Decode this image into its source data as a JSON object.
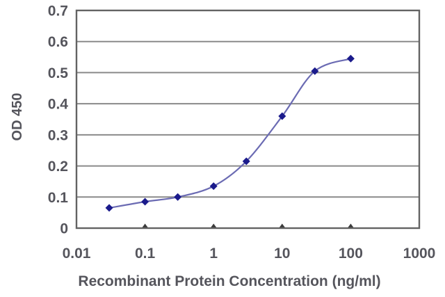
{
  "figure": {
    "background_color": "#ffffff"
  },
  "chart_data": {
    "type": "line",
    "title": "",
    "xlabel": "Recombinant Protein Concentration (ng/ml)",
    "ylabel": "OD 450",
    "x_scale": "log",
    "y_scale": "linear",
    "xlim": [
      0.01,
      1000
    ],
    "ylim": [
      0,
      0.7
    ],
    "x_tick_labels": [
      "0.01",
      "0.1",
      "1",
      "10",
      "100",
      "1000"
    ],
    "x_tick_values": [
      0.01,
      0.1,
      1,
      10,
      100,
      1000
    ],
    "y_tick_labels": [
      "0",
      "0.1",
      "0.2",
      "0.3",
      "0.4",
      "0.5",
      "0.6",
      "0.7"
    ],
    "y_tick_values": [
      0,
      0.1,
      0.2,
      0.3,
      0.4,
      0.5,
      0.6,
      0.7
    ],
    "grid": "horizontal",
    "legend": "none",
    "smooth": true,
    "marker": "diamond",
    "series": [
      {
        "name": "OD 450",
        "x": [
          0.03,
          0.1,
          0.3,
          1,
          3,
          10,
          30,
          100
        ],
        "y": [
          0.065,
          0.085,
          0.1,
          0.135,
          0.215,
          0.36,
          0.505,
          0.545
        ]
      }
    ],
    "colors": {
      "line": "#6b6bb3",
      "marker": "#1b1b8c",
      "gridline": "#8a8a8a",
      "plot_border": "#636363",
      "tick_mark": "#3d3d3d",
      "text": "#55555c",
      "background": "#ffffff"
    }
  }
}
